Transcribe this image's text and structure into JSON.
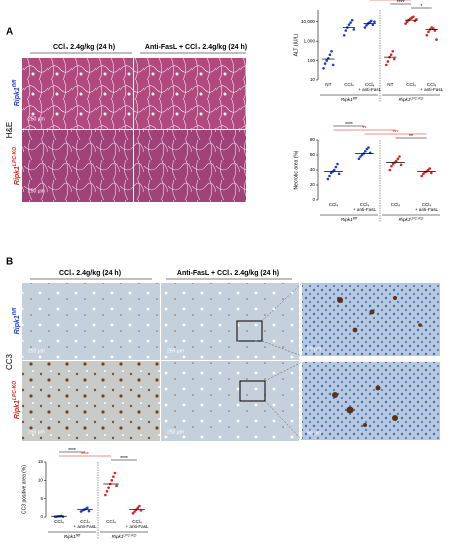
{
  "panel_a": {
    "label": "A",
    "stain": "H&E",
    "columns": [
      "CCl₄ 2.4g/kg (24 h)",
      "Anti-FasL + CCl₄ 2.4g/kg (24 h)"
    ],
    "rows": [
      {
        "gene": "Ripk1",
        "genotype": "fl/fl"
      },
      {
        "gene": "Ripk1",
        "genotype": "LPC-KO"
      }
    ],
    "scale_bar": "250 µm"
  },
  "panel_b": {
    "label": "B",
    "stain": "CC3",
    "columns": [
      "CCl₄ 2.4g/kg (24 h)",
      "Anti-FasL + CCl₄ 2.4g/kg (24 h)"
    ],
    "rows": [
      {
        "gene": "Ripk1",
        "genotype": "fl/fl"
      },
      {
        "gene": "Ripk1",
        "genotype": "LPC-KO"
      }
    ],
    "scale_bar": "250 µm",
    "zoom_scale_bar": "50 µm"
  },
  "chart_data": [
    {
      "type": "strip",
      "ylabel": "ALT (IU/L)",
      "log_scale": true,
      "ylim": [
        10,
        40000
      ],
      "yticks": [
        10,
        100,
        {
          "value": 1000,
          "label": "1,000"
        },
        {
          "value": 10000,
          "label": "10,000"
        }
      ],
      "genotypes": [
        {
          "gene": "Ripk1",
          "genotype": "fl/fl",
          "color": "#1a3fd6",
          "groups": [
            {
              "lines": [
                "NT"
              ],
              "mean": 120,
              "values": [
                40,
                70,
                100,
                130,
                200,
                300,
                60
              ]
            },
            {
              "lines": [
                "CCl₄"
              ],
              "mean": 5000,
              "values": [
                2000,
                3500,
                5000,
                7000,
                9000,
                12000,
                4000
              ]
            },
            {
              "lines": [
                "CCl₄",
                "+ anti-FasL"
              ],
              "mean": 8000,
              "values": [
                5000,
                6500,
                8000,
                9500,
                11000,
                7000,
                10000
              ]
            }
          ]
        },
        {
          "gene": "Ripk1",
          "genotype": "LPC-KO",
          "color": "#e0201a",
          "groups": [
            {
              "lines": [
                "NT"
              ],
              "mean": 150,
              "values": [
                60,
                90,
                150,
                200,
                300,
                120
              ]
            },
            {
              "lines": [
                "CCl₄"
              ],
              "mean": 12000,
              "values": [
                8000,
                10000,
                12000,
                14000,
                16000,
                18000,
                11000,
                13000
              ]
            },
            {
              "lines": [
                "CCl₄",
                "+ anti-FasL"
              ],
              "mean": 4000,
              "values": [
                2000,
                3000,
                4000,
                5000,
                4500,
                3500,
                1200
              ]
            }
          ]
        }
      ],
      "annotations": [
        {
          "label": "****",
          "color": "#000"
        },
        {
          "label": "****",
          "color": "#000"
        },
        {
          "label": "*",
          "color": "#e0201a"
        },
        {
          "label": "****",
          "color": "#000"
        },
        {
          "label": "*",
          "color": "#000"
        }
      ]
    },
    {
      "type": "strip",
      "ylabel": "Necrotic area (%)",
      "log_scale": false,
      "ylim": [
        0,
        80
      ],
      "yticks": [
        0,
        20,
        40,
        60,
        80
      ],
      "genotypes": [
        {
          "gene": "Ripk1",
          "genotype": "fl/fl",
          "color": "#1a3fd6",
          "groups": [
            {
              "lines": [
                "CCl₄"
              ],
              "mean": 38,
              "values": [
                28,
                32,
                36,
                38,
                40,
                44,
                48,
                35
              ]
            },
            {
              "lines": [
                "CCl₄",
                "+ anti-FasL"
              ],
              "mean": 62,
              "values": [
                55,
                58,
                60,
                62,
                65,
                68,
                70,
                63
              ]
            }
          ]
        },
        {
          "gene": "Ripk1",
          "genotype": "LPC-KO",
          "color": "#e0201a",
          "groups": [
            {
              "lines": [
                "CCl₄"
              ],
              "mean": 50,
              "values": [
                40,
                45,
                48,
                50,
                52,
                55,
                58,
                47
              ]
            },
            {
              "lines": [
                "CCl₄",
                "+ anti-FasL"
              ],
              "mean": 38,
              "values": [
                32,
                35,
                37,
                38,
                40,
                42,
                36
              ]
            }
          ]
        }
      ],
      "annotations": [
        {
          "label": "****",
          "color": "#000"
        },
        {
          "label": "**",
          "color": "#e0201a"
        },
        {
          "label": "***",
          "color": "#e0201a"
        },
        {
          "label": "**",
          "color": "#000"
        }
      ]
    },
    {
      "type": "strip",
      "ylabel": "CC3 positive area (%)",
      "log_scale": false,
      "ylim": [
        0,
        15
      ],
      "yticks": [
        0,
        5,
        10,
        15
      ],
      "genotypes": [
        {
          "gene": "Ripk1",
          "genotype": "fl/fl",
          "color": "#1a3fd6",
          "groups": [
            {
              "lines": [
                "CCl₄"
              ],
              "mean": 0.2,
              "values": [
                0.1,
                0.1,
                0.2,
                0.2,
                0.3,
                0.1
              ]
            },
            {
              "lines": [
                "CCl₄",
                "+ anti-FasL"
              ],
              "mean": 2,
              "values": [
                1.5,
                1.8,
                2,
                2.2,
                2.5,
                1.6
              ]
            }
          ]
        },
        {
          "gene": "Ripk1",
          "genotype": "LPC-KO",
          "color": "#e0201a",
          "groups": [
            {
              "lines": [
                "CCl₄"
              ],
              "mean": 9,
              "values": [
                6,
                7,
                8,
                9,
                10,
                11,
                12,
                8.5
              ]
            },
            {
              "lines": [
                "CCl₄",
                "+ anti-FasL"
              ],
              "mean": 2,
              "values": [
                1,
                1.5,
                2,
                2.5,
                3,
                1.8
              ]
            }
          ]
        }
      ],
      "annotations": [
        {
          "label": "****",
          "color": "#000"
        },
        {
          "label": "****",
          "color": "#e0201a"
        },
        {
          "label": "****",
          "color": "#000"
        }
      ]
    }
  ]
}
